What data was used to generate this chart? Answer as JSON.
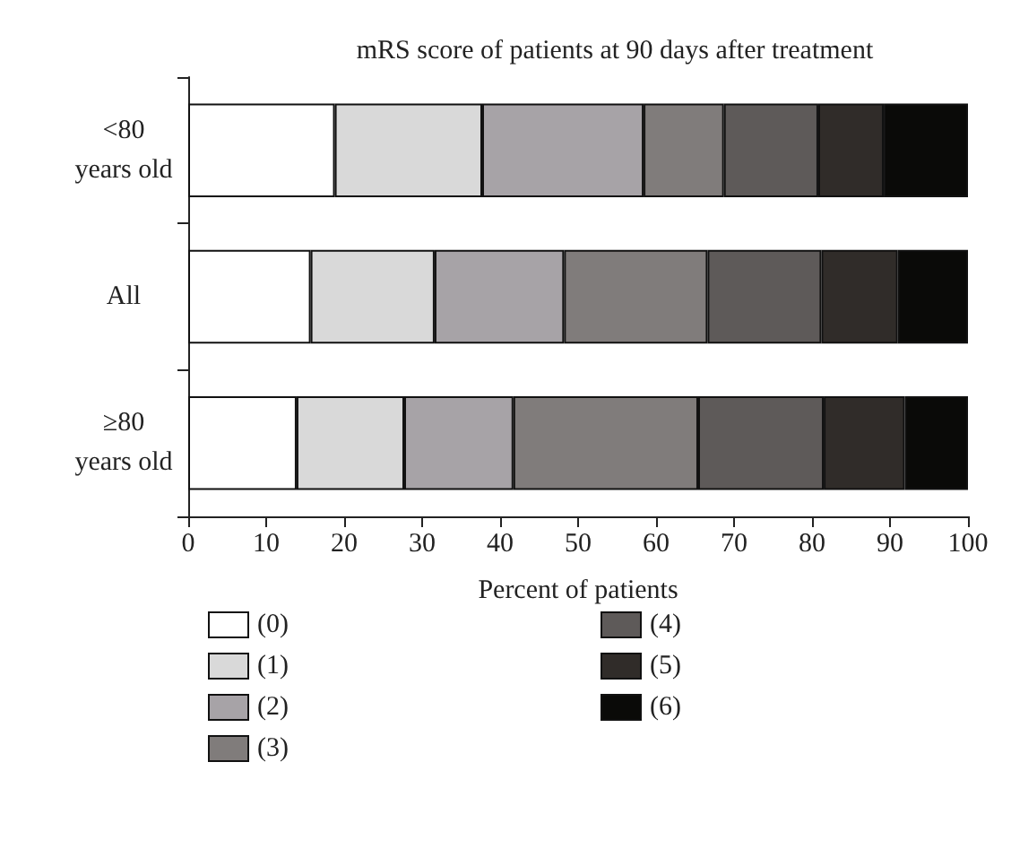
{
  "chart_data": {
    "type": "bar",
    "orientation": "horizontal",
    "stacked": true,
    "title": "mRS score of patients at 90 days after treatment",
    "xlabel": "Percent of patients",
    "categories": [
      "<80\nyears old",
      "All",
      "≥80\nyears old"
    ],
    "series": [
      {
        "name": "(0)",
        "color": "#ffffff",
        "values": [
          18.8,
          15.7,
          13.9
        ]
      },
      {
        "name": "(1)",
        "color": "#d9d9d9",
        "values": [
          18.9,
          15.9,
          13.8
        ]
      },
      {
        "name": "(2)",
        "color": "#a7a3a7",
        "values": [
          20.7,
          16.6,
          14.0
        ]
      },
      {
        "name": "(3)",
        "color": "#807c7b",
        "values": [
          10.3,
          18.4,
          23.7
        ]
      },
      {
        "name": "(4)",
        "color": "#5e5a59",
        "values": [
          12.1,
          14.6,
          16.1
        ]
      },
      {
        "name": "(5)",
        "color": "#302c29",
        "values": [
          8.4,
          9.8,
          10.4
        ]
      },
      {
        "name": "(6)",
        "color": "#0a0a08",
        "values": [
          10.8,
          9.0,
          8.1
        ]
      }
    ],
    "xlim": [
      0,
      100
    ],
    "xticks": [
      0,
      10,
      20,
      30,
      40,
      50,
      60,
      70,
      80,
      90,
      100
    ],
    "grid": false,
    "legend": "bottom"
  }
}
